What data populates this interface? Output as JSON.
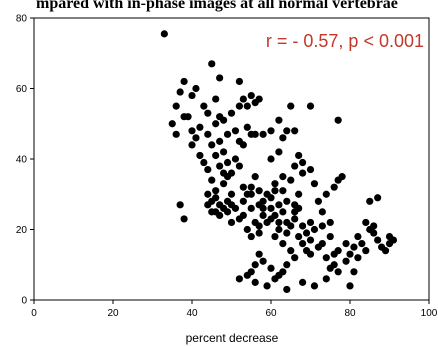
{
  "chart_data": {
    "type": "scatter",
    "title": "mpared with in-phase images at all normal vertebrae",
    "xlabel": "percent decrease",
    "ylabel": "",
    "xlim": [
      0,
      100
    ],
    "ylim": [
      0,
      80
    ],
    "xticks": [
      0,
      20,
      40,
      60,
      80,
      100
    ],
    "yticks": [
      0,
      20,
      40,
      60,
      80
    ],
    "annotation": "r = - 0.57, p < 0.001",
    "annotation_color": "#c0392b",
    "marker_color": "#000000",
    "grid": false,
    "points": [
      [
        33,
        75.5
      ],
      [
        37,
        59
      ],
      [
        38,
        62
      ],
      [
        38,
        52
      ],
      [
        36,
        55
      ],
      [
        35,
        50
      ],
      [
        36,
        47
      ],
      [
        37,
        27
      ],
      [
        38,
        23
      ],
      [
        40,
        58
      ],
      [
        41,
        60
      ],
      [
        42,
        49
      ],
      [
        40,
        48
      ],
      [
        43,
        55
      ],
      [
        44,
        53
      ],
      [
        45,
        67
      ],
      [
        46,
        57
      ],
      [
        47,
        63
      ],
      [
        44,
        47
      ],
      [
        46,
        50
      ],
      [
        47,
        52
      ],
      [
        48,
        51
      ],
      [
        49,
        47
      ],
      [
        47,
        45
      ],
      [
        48,
        42
      ],
      [
        43,
        39
      ],
      [
        44,
        37
      ],
      [
        45,
        34
      ],
      [
        44,
        30
      ],
      [
        45,
        28
      ],
      [
        46,
        31
      ],
      [
        47,
        27
      ],
      [
        46,
        25
      ],
      [
        48,
        26
      ],
      [
        49,
        28
      ],
      [
        50,
        27
      ],
      [
        51,
        26
      ],
      [
        52,
        23
      ],
      [
        53,
        28
      ],
      [
        55,
        26
      ],
      [
        54,
        30
      ],
      [
        55,
        32
      ],
      [
        56,
        35
      ],
      [
        57,
        31
      ],
      [
        58,
        28
      ],
      [
        59,
        30
      ],
      [
        60,
        29
      ],
      [
        61,
        31
      ],
      [
        62,
        27
      ],
      [
        63,
        25
      ],
      [
        64,
        22
      ],
      [
        58,
        24
      ],
      [
        60,
        23
      ],
      [
        56,
        22
      ],
      [
        57,
        19
      ],
      [
        55,
        18
      ],
      [
        62,
        20
      ],
      [
        64,
        19
      ],
      [
        65,
        21
      ],
      [
        66,
        23
      ],
      [
        67,
        18
      ],
      [
        68,
        16
      ],
      [
        68,
        21
      ],
      [
        69,
        14
      ],
      [
        70,
        13
      ],
      [
        72,
        15
      ],
      [
        73,
        16
      ],
      [
        74,
        12
      ],
      [
        75,
        18
      ],
      [
        75,
        22
      ],
      [
        76,
        10
      ],
      [
        77,
        14
      ],
      [
        78,
        35
      ],
      [
        77,
        34
      ],
      [
        77,
        51
      ],
      [
        66,
        48
      ],
      [
        70,
        55
      ],
      [
        65,
        55
      ],
      [
        60,
        48
      ],
      [
        58,
        47
      ],
      [
        57,
        57
      ],
      [
        56,
        56
      ],
      [
        55,
        58
      ],
      [
        53,
        57
      ],
      [
        52,
        62
      ],
      [
        54,
        55
      ],
      [
        52,
        55
      ],
      [
        50,
        53
      ],
      [
        51,
        48
      ],
      [
        52,
        45
      ],
      [
        53,
        44
      ],
      [
        55,
        47
      ],
      [
        54,
        49
      ],
      [
        56,
        47
      ],
      [
        51,
        40
      ],
      [
        52,
        38
      ],
      [
        50,
        36
      ],
      [
        49,
        39
      ],
      [
        49,
        35
      ],
      [
        48,
        33
      ],
      [
        50,
        30
      ],
      [
        53,
        32
      ],
      [
        55,
        30
      ],
      [
        57,
        27
      ],
      [
        58,
        26
      ],
      [
        60,
        26
      ],
      [
        61,
        33
      ],
      [
        63,
        31
      ],
      [
        64,
        28
      ],
      [
        66,
        27
      ],
      [
        67,
        30
      ],
      [
        68,
        36
      ],
      [
        68,
        39
      ],
      [
        67,
        41
      ],
      [
        70,
        37
      ],
      [
        71,
        33
      ],
      [
        72,
        28
      ],
      [
        73,
        25
      ],
      [
        73,
        21
      ],
      [
        71,
        20
      ],
      [
        70,
        22
      ],
      [
        74,
        30
      ],
      [
        76,
        32
      ],
      [
        60,
        40
      ],
      [
        62,
        42
      ],
      [
        63,
        35
      ],
      [
        65,
        34
      ],
      [
        66,
        38
      ],
      [
        61,
        18
      ],
      [
        63,
        16
      ],
      [
        65,
        14
      ],
      [
        66,
        12
      ],
      [
        64,
        10
      ],
      [
        63,
        8
      ],
      [
        62,
        7
      ],
      [
        61,
        6
      ],
      [
        60,
        9
      ],
      [
        58,
        11
      ],
      [
        57,
        13
      ],
      [
        56,
        10
      ],
      [
        55,
        8
      ],
      [
        54,
        7
      ],
      [
        52,
        6
      ],
      [
        56,
        5
      ],
      [
        59,
        4
      ],
      [
        64,
        3
      ],
      [
        68,
        5
      ],
      [
        71,
        4
      ],
      [
        74,
        6
      ],
      [
        77,
        8
      ],
      [
        80,
        4
      ],
      [
        81,
        8
      ],
      [
        82,
        12
      ],
      [
        81,
        15
      ],
      [
        79,
        16
      ],
      [
        80,
        13
      ],
      [
        82,
        18
      ],
      [
        83,
        16
      ],
      [
        84,
        14
      ],
      [
        85,
        20
      ],
      [
        86,
        19
      ],
      [
        87,
        17
      ],
      [
        87,
        29
      ],
      [
        88,
        15
      ],
      [
        89,
        14
      ],
      [
        90,
        16
      ],
      [
        90,
        18
      ],
      [
        91,
        17
      ],
      [
        85,
        28
      ],
      [
        84,
        22
      ],
      [
        86,
        21
      ],
      [
        76,
        13
      ],
      [
        75,
        9
      ],
      [
        79,
        11
      ],
      [
        64,
        48
      ],
      [
        62,
        51
      ],
      [
        63,
        46
      ],
      [
        42,
        41
      ],
      [
        40,
        44
      ],
      [
        41,
        46
      ],
      [
        39,
        52
      ],
      [
        45,
        44
      ],
      [
        46,
        41
      ],
      [
        47,
        38
      ],
      [
        48,
        36
      ],
      [
        46,
        29
      ],
      [
        44,
        27
      ],
      [
        45,
        25
      ],
      [
        47,
        24
      ],
      [
        49,
        25
      ],
      [
        50,
        22
      ],
      [
        53,
        24
      ],
      [
        54,
        20
      ],
      [
        57,
        21
      ],
      [
        59,
        22
      ],
      [
        61,
        24
      ],
      [
        62,
        22
      ],
      [
        66,
        25
      ],
      [
        67,
        26
      ],
      [
        69,
        19
      ],
      [
        70,
        17
      ]
    ]
  }
}
